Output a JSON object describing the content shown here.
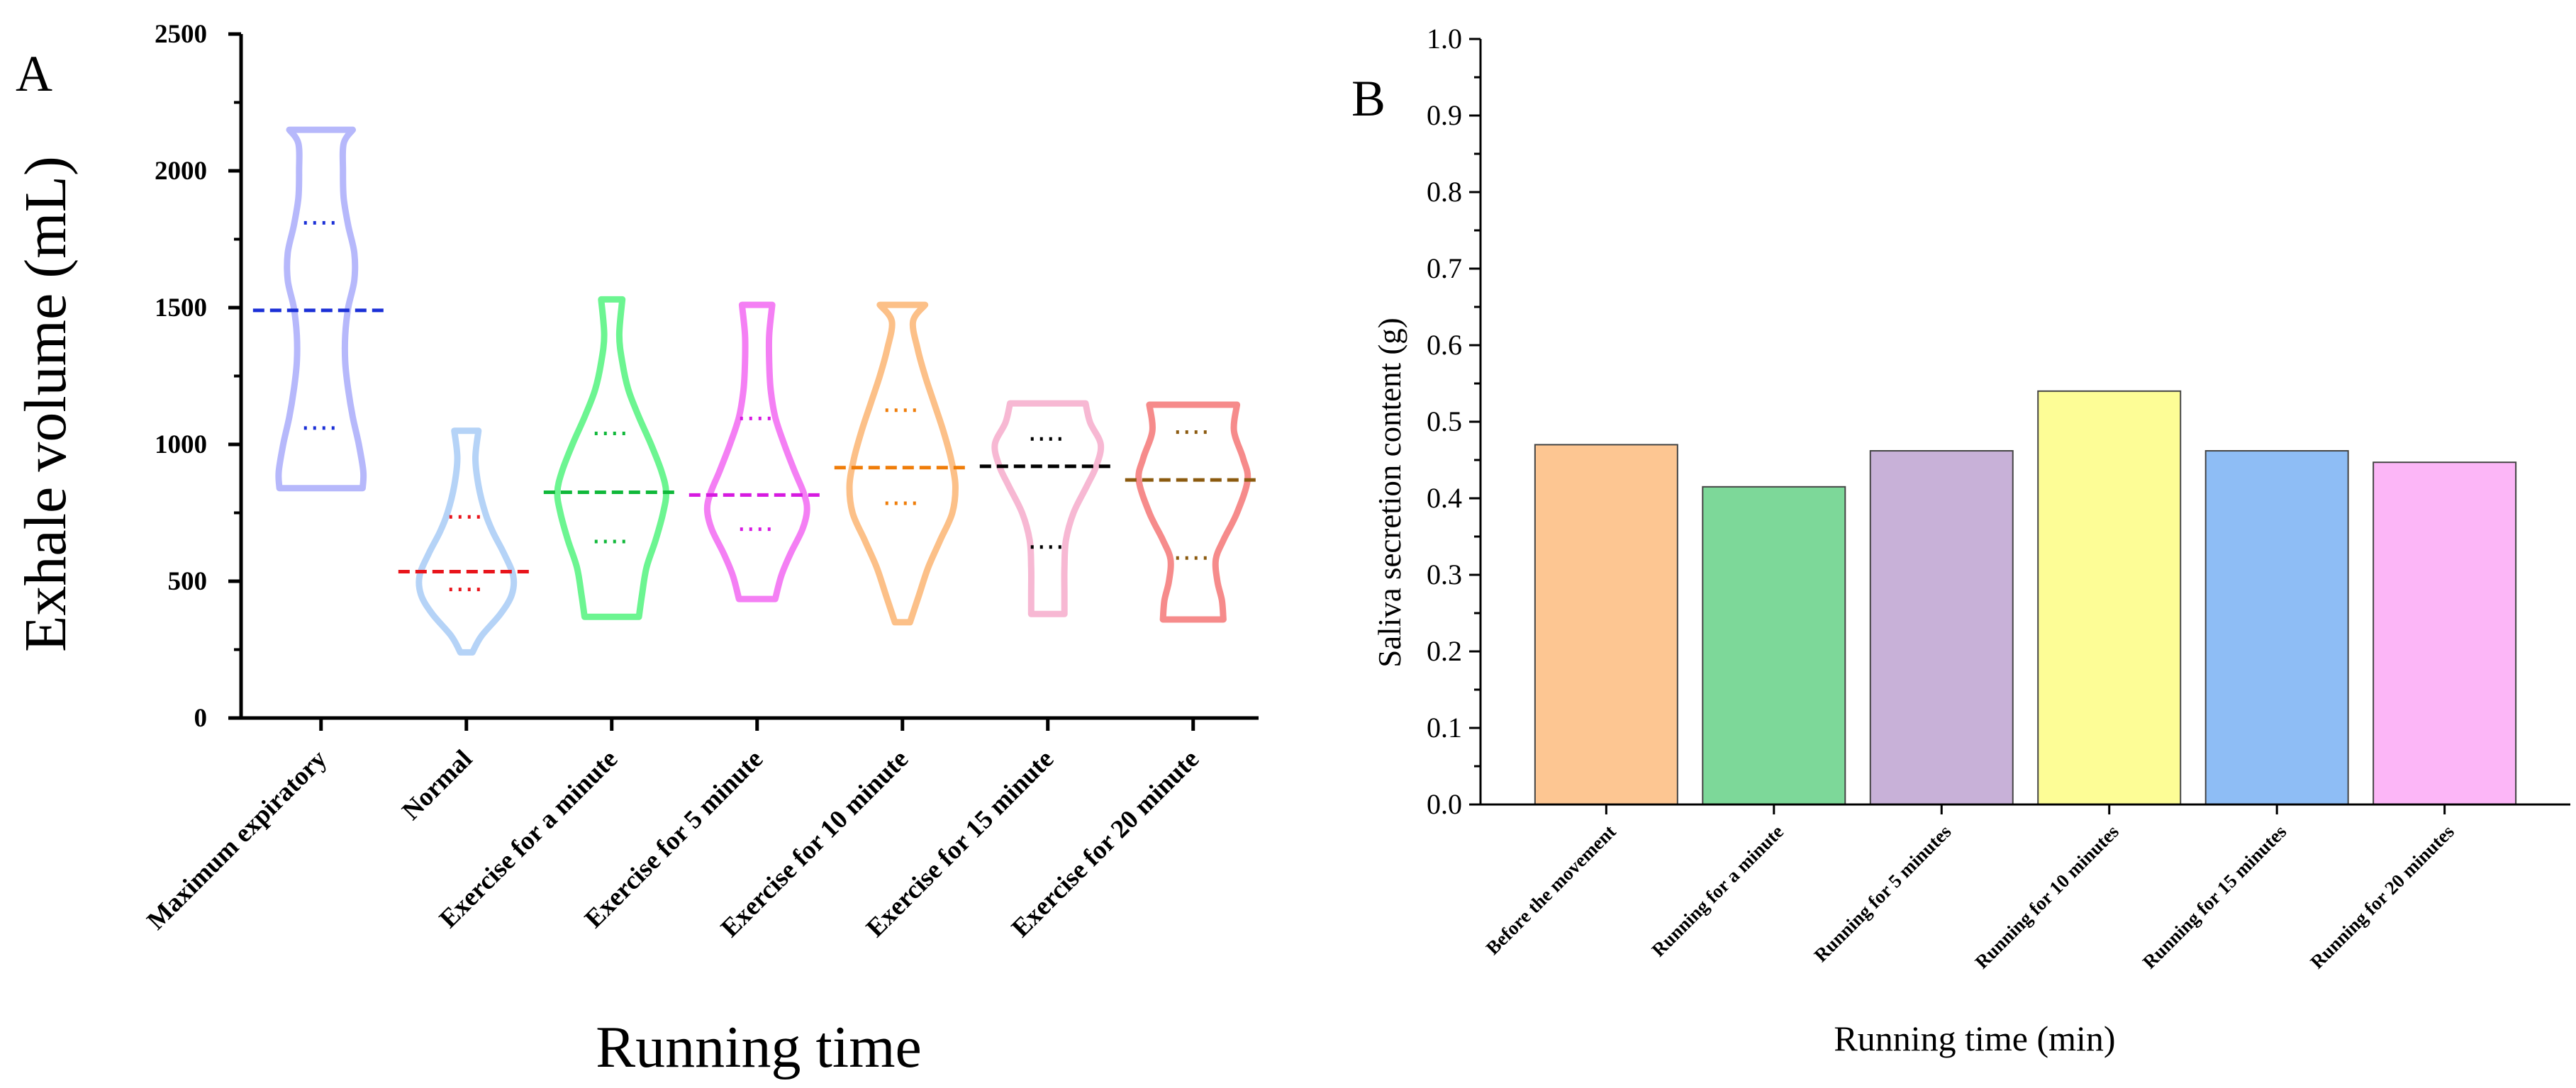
{
  "chart_data": [
    {
      "panel": "A",
      "type": "violin",
      "title": "",
      "xlabel": "Running time",
      "ylabel": "Exhale volume (mL)",
      "ylim": [
        0,
        2500
      ],
      "yticks": [
        0,
        500,
        1000,
        1500,
        2000,
        2500
      ],
      "categories": [
        "Maximum expiratory",
        "Normal",
        "Exercise for a minute",
        "Exercise for 5 minute",
        "Exercise for 10 minute",
        "Exercise for 15 minute",
        "Exercise for 20 minute"
      ],
      "series": [
        {
          "name": "Maximum expiratory",
          "color": "#b6b8fb",
          "median_color": "#1a2fd6",
          "min": 840,
          "max": 2150,
          "q1": 1060,
          "median": 1490,
          "q3": 1810,
          "profile": [
            [
              840,
              0.55
            ],
            [
              900,
              0.56
            ],
            [
              1000,
              0.5
            ],
            [
              1100,
              0.42
            ],
            [
              1200,
              0.36
            ],
            [
              1300,
              0.32
            ],
            [
              1400,
              0.32
            ],
            [
              1500,
              0.36
            ],
            [
              1600,
              0.44
            ],
            [
              1700,
              0.44
            ],
            [
              1800,
              0.36
            ],
            [
              1900,
              0.3
            ],
            [
              2000,
              0.29
            ],
            [
              2100,
              0.3
            ],
            [
              2150,
              0.42
            ]
          ]
        },
        {
          "name": "Normal",
          "color": "#b5d3f7",
          "median_color": "#e8141b",
          "min": 240,
          "max": 1050,
          "q1": 470,
          "median": 535,
          "q3": 735,
          "profile": [
            [
              240,
              0.08
            ],
            [
              300,
              0.2
            ],
            [
              380,
              0.45
            ],
            [
              450,
              0.6
            ],
            [
              520,
              0.62
            ],
            [
              600,
              0.5
            ],
            [
              680,
              0.35
            ],
            [
              750,
              0.25
            ],
            [
              850,
              0.16
            ],
            [
              950,
              0.12
            ],
            [
              1050,
              0.16
            ]
          ]
        },
        {
          "name": "Exercise for a minute",
          "color": "#6cf591",
          "median_color": "#10b83a",
          "min": 370,
          "max": 1530,
          "q1": 645,
          "median": 825,
          "q3": 1040,
          "profile": [
            [
              370,
              0.36
            ],
            [
              450,
              0.4
            ],
            [
              550,
              0.46
            ],
            [
              650,
              0.58
            ],
            [
              750,
              0.68
            ],
            [
              825,
              0.72
            ],
            [
              900,
              0.66
            ],
            [
              1000,
              0.52
            ],
            [
              1100,
              0.36
            ],
            [
              1200,
              0.22
            ],
            [
              1300,
              0.14
            ],
            [
              1400,
              0.1
            ],
            [
              1530,
              0.14
            ]
          ]
        },
        {
          "name": "Exercise for 5 minute",
          "color": "#f47ff4",
          "median_color": "#d61ae0",
          "min": 435,
          "max": 1510,
          "q1": 690,
          "median": 815,
          "q3": 1095,
          "profile": [
            [
              435,
              0.24
            ],
            [
              520,
              0.32
            ],
            [
              600,
              0.44
            ],
            [
              690,
              0.6
            ],
            [
              760,
              0.66
            ],
            [
              820,
              0.62
            ],
            [
              900,
              0.5
            ],
            [
              1000,
              0.36
            ],
            [
              1100,
              0.24
            ],
            [
              1200,
              0.18
            ],
            [
              1300,
              0.16
            ],
            [
              1400,
              0.16
            ],
            [
              1510,
              0.2
            ]
          ]
        },
        {
          "name": "Exercise for 10 minute",
          "color": "#fcc088",
          "median_color": "#ef7d0a",
          "min": 350,
          "max": 1510,
          "q1": 785,
          "median": 915,
          "q3": 1125,
          "profile": [
            [
              350,
              0.1
            ],
            [
              450,
              0.22
            ],
            [
              550,
              0.34
            ],
            [
              650,
              0.5
            ],
            [
              750,
              0.66
            ],
            [
              850,
              0.7
            ],
            [
              950,
              0.64
            ],
            [
              1050,
              0.54
            ],
            [
              1150,
              0.42
            ],
            [
              1250,
              0.3
            ],
            [
              1350,
              0.2
            ],
            [
              1450,
              0.14
            ],
            [
              1510,
              0.3
            ]
          ]
        },
        {
          "name": "Exercise for 15 minute",
          "color": "#f7b8d3",
          "median_color": "#000000",
          "min": 380,
          "max": 1150,
          "q1": 625,
          "median": 920,
          "q3": 1020,
          "profile": [
            [
              380,
              0.22
            ],
            [
              450,
              0.22
            ],
            [
              550,
              0.22
            ],
            [
              650,
              0.24
            ],
            [
              750,
              0.34
            ],
            [
              850,
              0.52
            ],
            [
              920,
              0.64
            ],
            [
              1000,
              0.7
            ],
            [
              1080,
              0.56
            ],
            [
              1150,
              0.5
            ]
          ]
        },
        {
          "name": "Exercise for 20 minute",
          "color": "#f68b8b",
          "median_color": "#8b5a0f",
          "min": 360,
          "max": 1145,
          "q1": 585,
          "median": 870,
          "q3": 1045,
          "profile": [
            [
              360,
              0.4
            ],
            [
              430,
              0.38
            ],
            [
              500,
              0.32
            ],
            [
              580,
              0.3
            ],
            [
              650,
              0.4
            ],
            [
              750,
              0.58
            ],
            [
              870,
              0.72
            ],
            [
              950,
              0.66
            ],
            [
              1050,
              0.54
            ],
            [
              1145,
              0.58
            ]
          ]
        }
      ]
    },
    {
      "panel": "B",
      "type": "bar",
      "title": "",
      "xlabel": "Running time (min)",
      "ylabel": "Saliva secretion content (g)",
      "ylim": [
        0,
        1.0
      ],
      "yticks": [
        "0.0",
        "0.1",
        "0.2",
        "0.3",
        "0.4",
        "0.5",
        "0.6",
        "0.7",
        "0.8",
        "0.9",
        "1.0"
      ],
      "categories": [
        "Before the movement",
        "Running for a minute",
        "Running for 5 minutes",
        "Running for 10 minutes",
        "Running for 15 minutes",
        "Running for 20 minutes"
      ],
      "values": [
        0.47,
        0.415,
        0.462,
        0.54,
        0.462,
        0.447
      ],
      "colors": [
        "#fdc692",
        "#7dd899",
        "#c8b1d8",
        "#fdfd96",
        "#8ebdf5",
        "#fcb6f7"
      ]
    }
  ]
}
